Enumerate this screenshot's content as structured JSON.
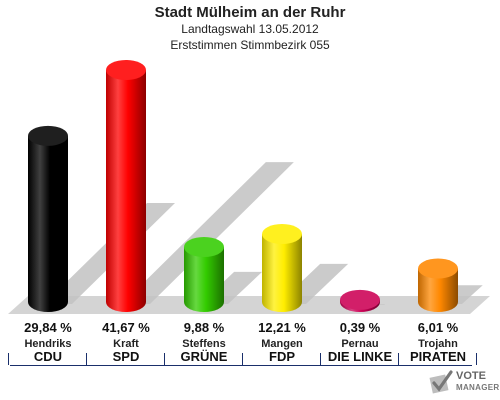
{
  "title": "Stadt Mülheim an der Ruhr",
  "subtitle": "Landtagswahl 13.05.2012",
  "subtitle2": "Erststimmen Stimmbezirk 055",
  "logo": {
    "line1": "VOTE",
    "line2": "MANAGER",
    "icon": "ballot-check-icon"
  },
  "chart_data": {
    "type": "bar",
    "title": "Stadt Mülheim an der Ruhr",
    "ylim": [
      0,
      45
    ],
    "grid": false,
    "categories": [
      "CDU",
      "SPD",
      "GRÜNE",
      "FDP",
      "DIE LINKE",
      "PIRATEN"
    ],
    "candidates": [
      "Hendriks",
      "Kraft",
      "Steffens",
      "Mangen",
      "Pernau",
      "Trojahn"
    ],
    "values": [
      29.84,
      41.67,
      9.88,
      12.21,
      0.39,
      6.01
    ],
    "labels": [
      "29,84 %",
      "41,67 %",
      "9,88 %",
      "12,21 %",
      "0,39 %",
      "6,01 %"
    ],
    "colors": [
      "#000000",
      "#ff0000",
      "#33cc00",
      "#ffee00",
      "#cc0055",
      "#ff8800"
    ]
  }
}
